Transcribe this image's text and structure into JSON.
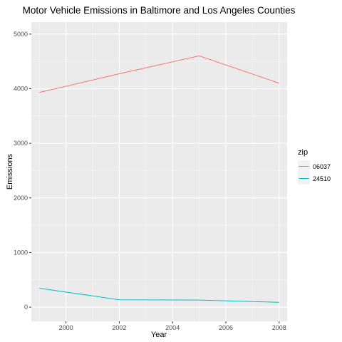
{
  "colors": {
    "panel_background": "#ebebeb",
    "grid_major": "#ffffff",
    "grid_minor": "#f5f5f5",
    "tick_color": "#333333",
    "text_muted": "#4d4d4d",
    "legend_key_background": "#f2f2f2"
  },
  "chart_data": {
    "type": "line",
    "title": "Motor Vehicle Emissions in Baltimore and Los Angeles Counties",
    "xlabel": "Year",
    "ylabel": "Emissions",
    "x": [
      1999,
      2002,
      2005,
      2008
    ],
    "xlim": [
      1998.7,
      2008.3
    ],
    "ylim": [
      -260,
      5220
    ],
    "x_ticks": [
      2000,
      2002,
      2004,
      2006,
      2008
    ],
    "y_ticks": [
      0,
      1000,
      2000,
      3000,
      4000,
      5000
    ],
    "grid": true,
    "legend": {
      "title": "zip",
      "position": "right"
    },
    "series": [
      {
        "name": "06037",
        "color": "#f8766d",
        "values": [
          3931.12,
          4274.03,
          4601.41,
          4101.32
        ]
      },
      {
        "name": "24510",
        "color": "#00bfc4",
        "values": [
          346.82,
          134.31,
          130.43,
          88.28
        ]
      }
    ]
  }
}
